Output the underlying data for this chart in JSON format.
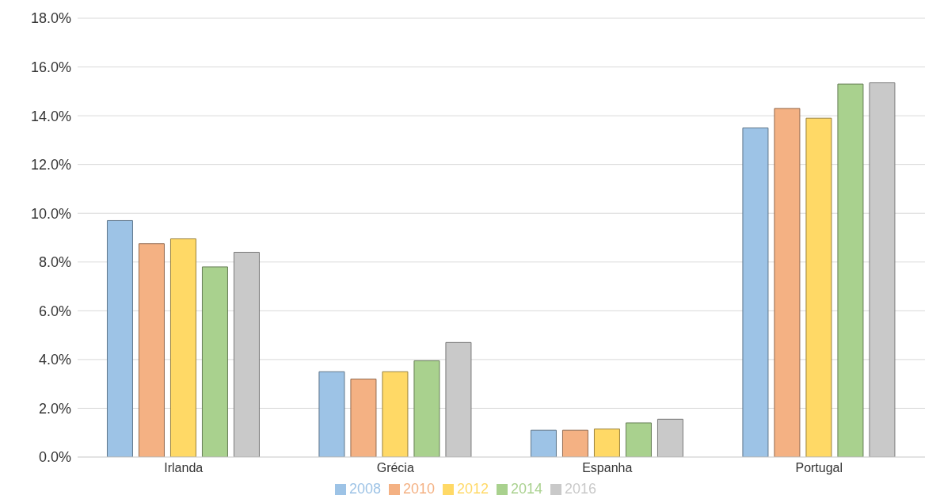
{
  "chart_data": {
    "type": "bar",
    "categories": [
      "Irlanda",
      "Grécia",
      "Espanha",
      "Portugal"
    ],
    "series": [
      {
        "name": "2008",
        "color": "#9dc3e6",
        "values": [
          9.7,
          3.5,
          1.1,
          13.5
        ]
      },
      {
        "name": "2010",
        "color": "#f4b183",
        "values": [
          8.75,
          3.2,
          1.1,
          14.3
        ]
      },
      {
        "name": "2012",
        "color": "#ffd966",
        "values": [
          8.95,
          3.5,
          1.15,
          13.9
        ]
      },
      {
        "name": "2014",
        "color": "#a9d18e",
        "values": [
          7.8,
          3.95,
          1.4,
          15.3
        ]
      },
      {
        "name": "2016",
        "color": "#c9c9c9",
        "values": [
          8.4,
          4.7,
          1.55,
          15.35
        ]
      }
    ],
    "ylim": [
      0,
      18
    ],
    "yticks": [
      {
        "value": 0,
        "label": "0.0%"
      },
      {
        "value": 2,
        "label": "2.0%"
      },
      {
        "value": 4,
        "label": "4.0%"
      },
      {
        "value": 6,
        "label": "6.0%"
      },
      {
        "value": 8,
        "label": "8.0%"
      },
      {
        "value": 10,
        "label": "10.0%"
      },
      {
        "value": 12,
        "label": "12.0%"
      },
      {
        "value": 14,
        "label": "14.0%"
      },
      {
        "value": 16,
        "label": "16.0%"
      },
      {
        "value": 18,
        "label": "18.0%"
      }
    ],
    "grid": "y",
    "legend": "bottom"
  }
}
